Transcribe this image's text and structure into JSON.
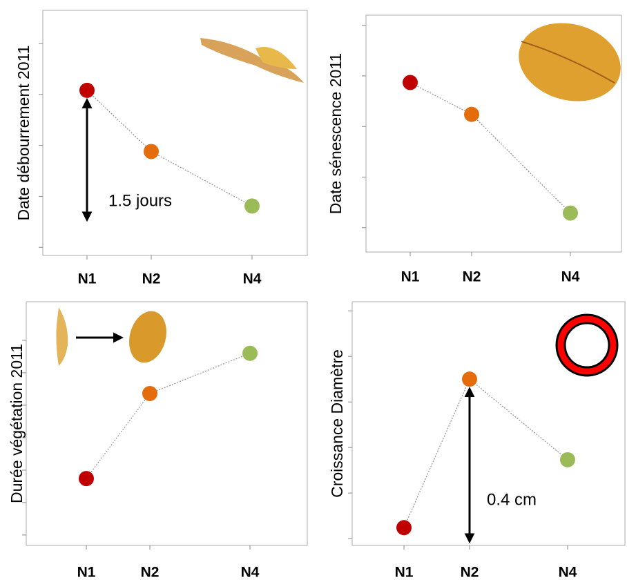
{
  "chart_data": [
    {
      "type": "line",
      "y_label": "Date débourrement 2011",
      "categories": [
        "N1",
        "N2",
        "N4"
      ],
      "values": [
        3.08,
        1.88,
        0.81
      ],
      "colors": [
        "#c00000",
        "#e46c0a",
        "#9bbb59"
      ],
      "ylim": [
        -0.16,
        4.65
      ],
      "yticks": [
        0,
        1,
        2,
        3,
        4
      ],
      "annotation": "1.5 jours"
    },
    {
      "type": "line",
      "y_label": "Date sénescence 2011",
      "categories": [
        "N1",
        "N2",
        "N4"
      ],
      "values": [
        2.87,
        2.24,
        0.29
      ],
      "colors": [
        "#c00000",
        "#e46c0a",
        "#9bbb59"
      ],
      "ylim": [
        -0.48,
        4.2
      ],
      "yticks": [
        0,
        1,
        2,
        3,
        4
      ]
    },
    {
      "type": "line",
      "y_label": "Durée végétation  2011",
      "categories": [
        "N1",
        "N2",
        "N4"
      ],
      "values": [
        1.74,
        4.36,
        5.6
      ],
      "colors": [
        "#c00000",
        "#e46c0a",
        "#9bbb59"
      ],
      "ylim": [
        -0.32,
        7.19
      ],
      "yticks": [
        0,
        1,
        2,
        3,
        4,
        5,
        6
      ]
    },
    {
      "type": "line",
      "y_label": "Croissance Diamètre",
      "categories": [
        "N1",
        "N2",
        "N4"
      ],
      "values": [
        0.24,
        3.5,
        1.73
      ],
      "colors": [
        "#c00000",
        "#e46c0a",
        "#9bbb59"
      ],
      "ylim": [
        -0.15,
        5.2
      ],
      "yticks": [
        0,
        1,
        2,
        3,
        4,
        5
      ],
      "annotation": "0.4 cm"
    }
  ]
}
